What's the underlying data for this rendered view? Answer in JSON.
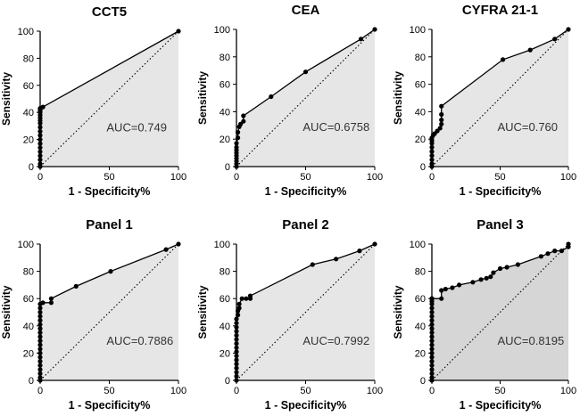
{
  "chart_data": [
    {
      "type": "line",
      "title": "CCT5",
      "xlabel": "1 - Specificity%",
      "ylabel": "Sensitivity",
      "xlim": [
        0,
        100
      ],
      "ylim": [
        0,
        100
      ],
      "xticks": [
        "0",
        "50",
        "100"
      ],
      "yticks": [
        "0",
        "20",
        "40",
        "60",
        "80",
        "100"
      ],
      "annotation": "AUC=0.749",
      "shade": "#e6e6e6",
      "x": [
        0,
        0,
        0,
        0,
        0,
        0,
        0,
        0,
        0,
        0,
        0,
        0,
        0,
        0,
        0,
        0,
        0,
        0,
        0,
        2,
        100
      ],
      "y": [
        0,
        2,
        5,
        8,
        11,
        14,
        17,
        20,
        23,
        26,
        29,
        32,
        34,
        36,
        38,
        40,
        41,
        42,
        43,
        44,
        100
      ]
    },
    {
      "type": "line",
      "title": "CEA",
      "xlabel": "1 - Specificity%",
      "ylabel": "Sensitivity",
      "xlim": [
        0,
        100
      ],
      "ylim": [
        0,
        100
      ],
      "xticks": [
        "0",
        "50",
        "100"
      ],
      "yticks": [
        "0",
        "20",
        "40",
        "60",
        "80",
        "100"
      ],
      "annotation": "AUC=0.6758",
      "shade": "#e6e6e6",
      "x": [
        0,
        0,
        0,
        0,
        0,
        0,
        0,
        0,
        0,
        1,
        1,
        2,
        3,
        5,
        5,
        25,
        50,
        90,
        100
      ],
      "y": [
        0,
        2,
        4,
        6,
        8,
        10,
        12,
        14,
        17,
        21,
        25,
        29,
        31,
        33,
        37,
        51,
        69,
        93,
        100
      ]
    },
    {
      "type": "line",
      "title": "CYFRA 21-1",
      "xlabel": "1 - Specificity%",
      "ylabel": "Sensitivity",
      "xlim": [
        0,
        100
      ],
      "ylim": [
        0,
        100
      ],
      "xticks": [
        "0",
        "50",
        "100"
      ],
      "yticks": [
        "0",
        "20",
        "40",
        "60",
        "80",
        "100"
      ],
      "annotation": "AUC=0.760",
      "shade": "#e6e6e6",
      "x": [
        0,
        0,
        0,
        0,
        0,
        0,
        0,
        0,
        0,
        1,
        2,
        4,
        6,
        7,
        7,
        7,
        7,
        52,
        72,
        90,
        100
      ],
      "y": [
        0,
        2,
        5,
        8,
        11,
        14,
        17,
        19,
        21,
        23,
        24,
        26,
        28,
        31,
        34,
        38,
        44,
        78,
        85,
        93,
        100
      ]
    },
    {
      "type": "line",
      "title": "Panel 1",
      "xlabel": "1 - Specificity%",
      "ylabel": "Sensitivity",
      "xlim": [
        0,
        100
      ],
      "ylim": [
        0,
        100
      ],
      "xticks": [
        "0",
        "50",
        "100"
      ],
      "yticks": [
        "0",
        "20",
        "40",
        "60",
        "80",
        "100"
      ],
      "annotation": "AUC=0.7886",
      "shade": "#e6e6e6",
      "x": [
        0,
        0,
        0,
        0,
        0,
        0,
        0,
        0,
        0,
        0,
        0,
        0,
        0,
        0,
        0,
        0,
        0,
        0,
        0,
        0,
        2,
        8,
        8,
        26,
        51,
        91,
        100
      ],
      "y": [
        0,
        2,
        5,
        8,
        11,
        14,
        17,
        20,
        23,
        26,
        29,
        32,
        35,
        38,
        41,
        44,
        47,
        50,
        53,
        56,
        57,
        57,
        60,
        69,
        80,
        96,
        100
      ]
    },
    {
      "type": "line",
      "title": "Panel 2",
      "xlabel": "1 - Specificity%",
      "ylabel": "Sensitivity",
      "xlim": [
        0,
        100
      ],
      "ylim": [
        0,
        100
      ],
      "xticks": [
        "0",
        "50",
        "100"
      ],
      "yticks": [
        "0",
        "20",
        "40",
        "60",
        "80",
        "100"
      ],
      "annotation": "AUC=0.7992",
      "shade": "#e6e6e6",
      "x": [
        0,
        0,
        0,
        0,
        0,
        0,
        0,
        0,
        0,
        0,
        0,
        0,
        0,
        0,
        0,
        0,
        1,
        1,
        2,
        2,
        4,
        7,
        10,
        10,
        55,
        72,
        89,
        100
      ],
      "y": [
        0,
        3,
        6,
        9,
        12,
        15,
        18,
        21,
        24,
        27,
        30,
        33,
        36,
        39,
        42,
        45,
        48,
        51,
        53,
        56,
        60,
        60,
        60,
        62,
        85,
        89,
        95,
        100
      ]
    },
    {
      "type": "line",
      "title": "Panel 3",
      "xlabel": "1 - Specificity%",
      "ylabel": "Sensitivity",
      "xlim": [
        0,
        100
      ],
      "ylim": [
        0,
        100
      ],
      "xticks": [
        "0",
        "50",
        "100"
      ],
      "yticks": [
        "0",
        "20",
        "40",
        "60",
        "80",
        "100"
      ],
      "annotation": "AUC=0.8195",
      "shade": "#d6d6d6",
      "x": [
        0,
        0,
        0,
        0,
        0,
        0,
        0,
        0,
        0,
        0,
        0,
        0,
        0,
        0,
        0,
        0,
        0,
        0,
        0,
        0,
        0,
        0,
        0,
        0,
        7,
        7,
        10,
        15,
        20,
        30,
        36,
        40,
        43,
        45,
        50,
        55,
        63,
        80,
        85,
        90,
        95,
        100,
        100
      ],
      "y": [
        0,
        2,
        5,
        8,
        11,
        14,
        17,
        20,
        23,
        26,
        29,
        32,
        35,
        38,
        41,
        44,
        47,
        50,
        53,
        56,
        58,
        60,
        60,
        60,
        60,
        66,
        67,
        68,
        70,
        72,
        74,
        75,
        76,
        79,
        82,
        83,
        85,
        91,
        93,
        95,
        95,
        98,
        100
      ]
    }
  ]
}
